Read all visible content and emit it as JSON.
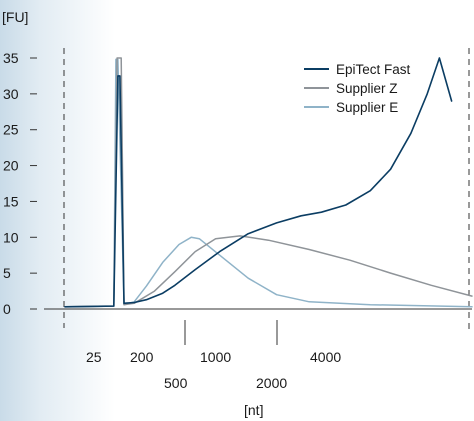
{
  "chart_data": {
    "type": "line",
    "y_unit_label": "[FU]",
    "x_unit_label": "[nt]",
    "ylim": [
      0,
      35
    ],
    "y_ticks": [
      0,
      5,
      10,
      15,
      20,
      25,
      30,
      35
    ],
    "x_ticks_upper": [
      "25",
      "200",
      "1000",
      "4000"
    ],
    "x_ticks_lower": [
      "500",
      "2000"
    ],
    "grid": false,
    "legend_position": "top-right",
    "series": [
      {
        "name": "EpiTect Fast",
        "color": "#0b3d63",
        "points": [
          [
            0,
            0.3
          ],
          [
            0.12,
            0.4
          ],
          [
            0.13,
            32.5
          ],
          [
            0.135,
            32.5
          ],
          [
            0.145,
            0.8
          ],
          [
            0.17,
            0.9
          ],
          [
            0.2,
            1.3
          ],
          [
            0.24,
            2.2
          ],
          [
            0.27,
            3.3
          ],
          [
            0.32,
            5.5
          ],
          [
            0.38,
            8.0
          ],
          [
            0.45,
            10.5
          ],
          [
            0.52,
            12.0
          ],
          [
            0.58,
            13.0
          ],
          [
            0.63,
            13.5
          ],
          [
            0.69,
            14.5
          ],
          [
            0.75,
            16.5
          ],
          [
            0.8,
            19.5
          ],
          [
            0.85,
            24.5
          ],
          [
            0.89,
            30.0
          ],
          [
            0.92,
            35.0
          ],
          [
            0.935,
            32.0
          ],
          [
            0.95,
            29.0
          ]
        ]
      },
      {
        "name": "Supplier Z",
        "color": "#8f9499",
        "points": [
          [
            0,
            0.3
          ],
          [
            0.12,
            0.4
          ],
          [
            0.128,
            35.0
          ],
          [
            0.138,
            35.0
          ],
          [
            0.145,
            0.6
          ],
          [
            0.17,
            0.8
          ],
          [
            0.22,
            2.5
          ],
          [
            0.27,
            5.2
          ],
          [
            0.32,
            8.0
          ],
          [
            0.37,
            9.8
          ],
          [
            0.43,
            10.2
          ],
          [
            0.5,
            9.6
          ],
          [
            0.6,
            8.3
          ],
          [
            0.7,
            6.8
          ],
          [
            0.8,
            5.0
          ],
          [
            0.9,
            3.3
          ],
          [
            1.0,
            1.8
          ]
        ]
      },
      {
        "name": "Supplier E",
        "color": "#8fb3c8",
        "points": [
          [
            0,
            0.3
          ],
          [
            0.12,
            0.4
          ],
          [
            0.125,
            34.8
          ],
          [
            0.13,
            34.8
          ],
          [
            0.145,
            0.6
          ],
          [
            0.17,
            1.0
          ],
          [
            0.2,
            3.2
          ],
          [
            0.24,
            6.5
          ],
          [
            0.28,
            9.0
          ],
          [
            0.31,
            10.0
          ],
          [
            0.33,
            9.8
          ],
          [
            0.38,
            7.5
          ],
          [
            0.45,
            4.3
          ],
          [
            0.52,
            2.0
          ],
          [
            0.6,
            1.0
          ],
          [
            0.75,
            0.6
          ],
          [
            1.0,
            0.3
          ]
        ]
      }
    ]
  }
}
